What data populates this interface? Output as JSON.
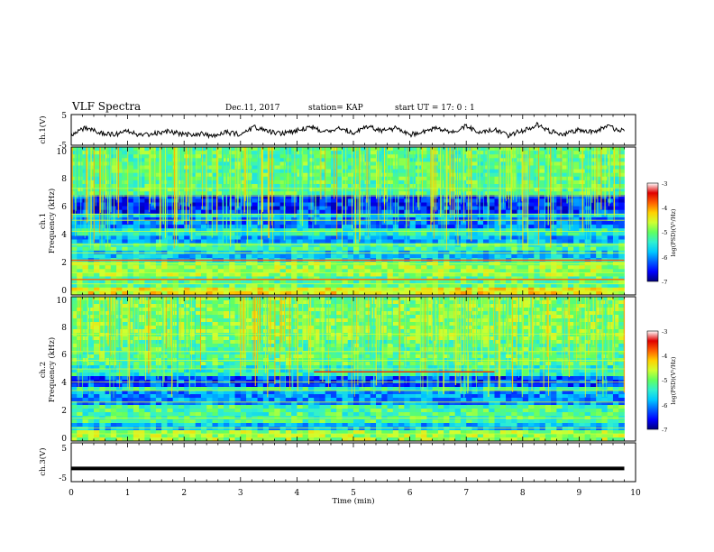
{
  "header": {
    "title": "VLF Spectra",
    "date": "Dec.11, 2017",
    "station": "station= KAP",
    "start": "start  UT  =   17: 0  : 1"
  },
  "colors": {
    "colormap": [
      "#00007a",
      "#0000ff",
      "#0060ff",
      "#00c8ff",
      "#30f0d0",
      "#60ff60",
      "#d0ff30",
      "#ffd000",
      "#ff6000",
      "#e00000",
      "#ffffff"
    ]
  },
  "chart_data": [
    {
      "type": "line",
      "ylabel": "ch.1(V)",
      "yticks": [
        "5",
        "-5"
      ],
      "ylim": [
        -5,
        5
      ],
      "xlim": [
        0,
        10
      ],
      "x": [
        0.0,
        0.25,
        0.5,
        0.75,
        1.0,
        1.25,
        1.5,
        1.75,
        2.0,
        2.25,
        2.5,
        2.75,
        3.0,
        3.25,
        3.5,
        3.75,
        4.0,
        4.25,
        4.5,
        4.75,
        5.0,
        5.25,
        5.5,
        5.75,
        6.0,
        6.25,
        6.5,
        6.75,
        7.0,
        7.25,
        7.5,
        7.75,
        8.0,
        8.25,
        8.5,
        8.75,
        9.0,
        9.25,
        9.5,
        9.8
      ],
      "values": [
        -1.5,
        0.6,
        -0.8,
        -1.6,
        -0.5,
        -1.9,
        -1.0,
        -0.4,
        -1.6,
        -1.2,
        -2.0,
        -0.8,
        -1.5,
        1.0,
        -0.6,
        -1.2,
        -0.2,
        1.2,
        -0.8,
        0.8,
        -1.0,
        1.0,
        -0.4,
        0.5,
        -1.6,
        -0.5,
        0.7,
        -0.6,
        1.2,
        -1.0,
        0.4,
        -1.8,
        -0.2,
        1.6,
        -0.6,
        -1.4,
        0.2,
        -0.8,
        1.0,
        -0.5
      ]
    },
    {
      "type": "heatmap",
      "ylabel": "ch.1\nFrequency  (kHz)",
      "yticks": [
        "10",
        "8",
        "6",
        "4",
        "2",
        "0"
      ],
      "ylim": [
        0,
        10
      ],
      "xlim": [
        0,
        9.8
      ],
      "colorbar": {
        "label": "log(PSD)(V²/Hz)",
        "ticks": [
          "-3",
          "-4",
          "-5",
          "-6",
          "-7"
        ],
        "range": [
          -7,
          -3
        ]
      },
      "freq_bands": [
        {
          "from": 0,
          "to": 0.6,
          "level": -4.4
        },
        {
          "from": 0.6,
          "to": 1.2,
          "level": -5.1
        },
        {
          "from": 1.2,
          "to": 2.2,
          "level": -4.8
        },
        {
          "from": 2.2,
          "to": 3.0,
          "level": -5.7
        },
        {
          "from": 3.0,
          "to": 3.5,
          "level": -5.2
        },
        {
          "from": 3.5,
          "to": 4.0,
          "level": -5.9
        },
        {
          "from": 4.0,
          "to": 4.6,
          "level": -5.4
        },
        {
          "from": 4.6,
          "to": 5.2,
          "level": -6.1
        },
        {
          "from": 5.2,
          "to": 5.6,
          "level": -5.6
        },
        {
          "from": 5.6,
          "to": 6.8,
          "level": -6.4
        },
        {
          "from": 6.8,
          "to": 10,
          "level": -5.1
        }
      ],
      "tone_lines_khz": [
        0.3,
        0.75,
        1.05,
        1.5,
        2.1,
        2.35,
        2.85,
        3.4,
        4.3,
        5.05,
        5.45,
        6.7,
        7.2
      ],
      "strong_lines_khz": [
        1.05,
        2.35
      ]
    },
    {
      "type": "heatmap",
      "ylabel": "ch.2\nFrequency  (kHz)",
      "yticks": [
        "10",
        "8",
        "6",
        "4",
        "2",
        "0"
      ],
      "ylim": [
        0,
        10
      ],
      "xlim": [
        0,
        9.8
      ],
      "colorbar": {
        "label": "log(PSD)(V²/Hz)",
        "ticks": [
          "-3",
          "-4",
          "-5",
          "-6",
          "-7"
        ],
        "range": [
          -7,
          -3
        ]
      },
      "freq_bands": [
        {
          "from": 0,
          "to": 0.8,
          "level": -4.8
        },
        {
          "from": 0.8,
          "to": 1.3,
          "level": -5.8
        },
        {
          "from": 1.3,
          "to": 2.4,
          "level": -5.2
        },
        {
          "from": 2.4,
          "to": 3.4,
          "level": -6.0
        },
        {
          "from": 3.4,
          "to": 3.8,
          "level": -5.3
        },
        {
          "from": 3.8,
          "to": 4.4,
          "level": -6.3
        },
        {
          "from": 4.4,
          "to": 5.2,
          "level": -5.4
        },
        {
          "from": 5.2,
          "to": 7.0,
          "level": -5.1
        },
        {
          "from": 7.0,
          "to": 10,
          "level": -4.9
        }
      ],
      "tone_lines_khz": [
        0.5,
        0.9,
        1.6,
        2.7,
        3.5,
        4.1,
        5.0,
        5.6,
        6.2,
        7.4
      ],
      "event": {
        "x_from": 4.3,
        "x_to": 7.5,
        "khz": 4.8,
        "level": -3.6
      }
    },
    {
      "type": "line",
      "ylabel": "ch.3(V)",
      "yticks": [
        "5",
        "-5"
      ],
      "ylim": [
        -5,
        5
      ],
      "xlim": [
        0,
        10
      ],
      "x": [
        0,
        9.8
      ],
      "values": [
        -1.6,
        -1.6
      ],
      "xlabel": "Time  (min)",
      "xticks": [
        "0",
        "1",
        "2",
        "3",
        "4",
        "5",
        "6",
        "7",
        "8",
        "9",
        "10"
      ]
    }
  ]
}
